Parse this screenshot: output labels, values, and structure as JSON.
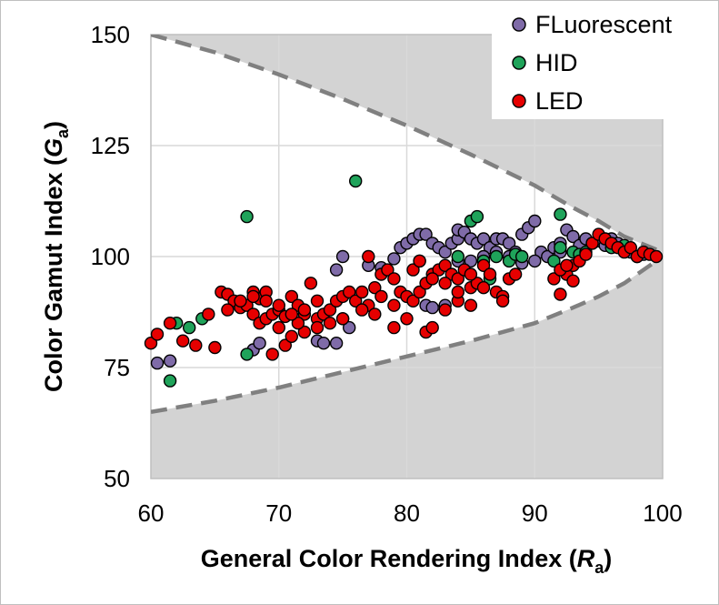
{
  "chart_data": {
    "type": "scatter",
    "xlabel": {
      "prefix": "General Color Rendering Index (",
      "var": "R",
      "sub": "a",
      "suffix": ")"
    },
    "ylabel": {
      "prefix": "Color Gamut Index (",
      "var": "G",
      "sub": "a",
      "suffix": ")"
    },
    "xlim": [
      60,
      100
    ],
    "ylim": [
      50,
      150
    ],
    "xticks": [
      60,
      70,
      80,
      90,
      100
    ],
    "yticks": [
      50,
      75,
      100,
      125,
      150
    ],
    "grid": true,
    "legend_position": "top-right",
    "boundary": {
      "upper": [
        [
          60,
          150
        ],
        [
          65,
          146
        ],
        [
          70,
          141
        ],
        [
          75,
          135.5
        ],
        [
          80,
          129.5
        ],
        [
          85,
          123
        ],
        [
          90,
          116
        ],
        [
          93,
          111
        ],
        [
          95,
          108
        ],
        [
          97,
          104.5
        ],
        [
          100,
          101
        ]
      ],
      "lower": [
        [
          60,
          65
        ],
        [
          65,
          67.5
        ],
        [
          70,
          70.5
        ],
        [
          75,
          74
        ],
        [
          80,
          77.5
        ],
        [
          85,
          81
        ],
        [
          90,
          85
        ],
        [
          93,
          88.5
        ],
        [
          95,
          91
        ],
        [
          97,
          94
        ],
        [
          99,
          98
        ],
        [
          100,
          100
        ]
      ]
    },
    "series": [
      {
        "name": "FLuorescent",
        "color": "#7f6ba8",
        "points": [
          [
            60.5,
            76
          ],
          [
            61.5,
            76.5
          ],
          [
            68,
            79
          ],
          [
            68.5,
            80.5
          ],
          [
            73,
            81
          ],
          [
            73.5,
            80.5
          ],
          [
            74.5,
            80.5
          ],
          [
            75,
            86
          ],
          [
            75.5,
            84
          ],
          [
            74.5,
            97
          ],
          [
            75,
            100
          ],
          [
            77,
            98
          ],
          [
            78,
            97.5
          ],
          [
            79,
            99.5
          ],
          [
            79.5,
            102
          ],
          [
            80,
            103
          ],
          [
            80.5,
            104
          ],
          [
            81,
            105
          ],
          [
            81.5,
            105
          ],
          [
            81,
            99
          ],
          [
            82,
            103
          ],
          [
            82.5,
            102
          ],
          [
            83,
            101
          ],
          [
            83.5,
            103
          ],
          [
            84,
            104
          ],
          [
            84,
            106
          ],
          [
            84.5,
            105.5
          ],
          [
            85,
            104
          ],
          [
            85.5,
            103
          ],
          [
            86,
            104
          ],
          [
            86.5,
            102
          ],
          [
            87,
            104
          ],
          [
            87.5,
            104
          ],
          [
            88,
            103
          ],
          [
            88.5,
            101
          ],
          [
            89,
            105
          ],
          [
            89.5,
            106.5
          ],
          [
            90,
            108
          ],
          [
            90.5,
            101
          ],
          [
            91,
            100
          ],
          [
            91.5,
            102
          ],
          [
            92,
            103
          ],
          [
            92.5,
            106
          ],
          [
            93,
            104.5
          ],
          [
            93.5,
            102.5
          ],
          [
            94,
            104
          ],
          [
            94.5,
            103
          ],
          [
            95,
            103.5
          ],
          [
            95.5,
            102.5
          ],
          [
            96,
            104
          ],
          [
            96.5,
            103
          ],
          [
            97,
            102
          ],
          [
            97.5,
            101
          ],
          [
            98,
            100
          ],
          [
            98.5,
            100.5
          ],
          [
            81.5,
            89
          ],
          [
            82,
            88.5
          ],
          [
            83,
            89
          ],
          [
            84,
            99
          ],
          [
            85,
            99
          ],
          [
            86,
            100
          ],
          [
            87,
            101
          ],
          [
            88,
            100
          ],
          [
            89,
            98.5
          ],
          [
            90,
            99
          ],
          [
            92,
            101
          ]
        ]
      },
      {
        "name": "HID",
        "color": "#1fa35a",
        "points": [
          [
            61.5,
            72
          ],
          [
            62,
            85
          ],
          [
            63,
            84
          ],
          [
            64,
            86
          ],
          [
            67.5,
            78
          ],
          [
            67.5,
            109
          ],
          [
            76,
            117
          ],
          [
            84,
            100
          ],
          [
            85,
            108
          ],
          [
            85.5,
            109
          ],
          [
            86,
            99
          ],
          [
            86.5,
            95
          ],
          [
            87,
            100
          ],
          [
            88,
            99
          ],
          [
            88.5,
            100.5
          ],
          [
            89,
            100
          ],
          [
            91.5,
            99
          ],
          [
            92,
            102
          ],
          [
            92,
            109.5
          ],
          [
            93,
            101
          ],
          [
            93.5,
            100.5
          ],
          [
            94,
            101
          ],
          [
            96,
            102
          ],
          [
            97,
            102.5
          ]
        ]
      },
      {
        "name": "LED",
        "color": "#e60000",
        "points": [
          [
            60,
            80.5
          ],
          [
            60.5,
            82.5
          ],
          [
            61.5,
            85
          ],
          [
            62.5,
            81
          ],
          [
            63.5,
            80
          ],
          [
            64.5,
            87
          ],
          [
            65,
            79.5
          ],
          [
            65.5,
            92
          ],
          [
            66,
            91.5
          ],
          [
            66.5,
            90
          ],
          [
            67,
            88.5
          ],
          [
            67.5,
            89
          ],
          [
            68,
            92
          ],
          [
            68.5,
            90.5
          ],
          [
            68,
            87
          ],
          [
            68.5,
            85
          ],
          [
            69,
            86
          ],
          [
            69.5,
            87
          ],
          [
            70,
            88
          ],
          [
            70.5,
            86.5
          ],
          [
            70,
            84
          ],
          [
            70.5,
            80
          ],
          [
            71,
            82
          ],
          [
            71,
            91
          ],
          [
            71.5,
            89
          ],
          [
            72,
            87
          ],
          [
            72.5,
            94
          ],
          [
            73,
            90
          ],
          [
            73,
            86
          ],
          [
            73.5,
            87
          ],
          [
            74,
            88
          ],
          [
            74.5,
            90
          ],
          [
            75,
            91
          ],
          [
            75.5,
            92
          ],
          [
            76,
            90
          ],
          [
            76.5,
            92
          ],
          [
            77,
            89
          ],
          [
            77.5,
            93
          ],
          [
            78,
            96
          ],
          [
            77,
            100
          ],
          [
            78.5,
            97
          ],
          [
            79,
            95
          ],
          [
            79.5,
            92
          ],
          [
            80,
            91
          ],
          [
            80.5,
            90
          ],
          [
            81,
            92
          ],
          [
            81.5,
            94
          ],
          [
            82,
            96
          ],
          [
            82.5,
            97
          ],
          [
            83,
            98
          ],
          [
            83.5,
            96
          ],
          [
            84,
            95
          ],
          [
            84.5,
            97
          ],
          [
            85,
            93
          ],
          [
            85.5,
            94
          ],
          [
            86,
            98
          ],
          [
            86.5,
            96
          ],
          [
            87,
            92
          ],
          [
            87.5,
            91
          ],
          [
            88,
            95
          ],
          [
            88.5,
            96
          ],
          [
            80,
            86
          ],
          [
            79,
            84
          ],
          [
            81.5,
            83
          ],
          [
            82,
            84
          ],
          [
            83,
            88
          ],
          [
            84,
            90
          ],
          [
            85,
            89
          ],
          [
            86,
            93
          ],
          [
            87.5,
            90
          ],
          [
            69,
            92
          ],
          [
            72,
            83
          ],
          [
            69.5,
            78
          ],
          [
            71.5,
            85
          ],
          [
            92,
            91.5
          ],
          [
            92.5,
            96
          ],
          [
            93,
            98
          ],
          [
            93.5,
            99
          ],
          [
            94,
            100.5
          ],
          [
            94.5,
            103
          ],
          [
            95,
            105
          ],
          [
            95.5,
            104
          ],
          [
            96,
            103
          ],
          [
            96.5,
            102
          ],
          [
            97,
            101
          ],
          [
            97.5,
            102
          ],
          [
            98,
            100
          ],
          [
            98.5,
            101
          ],
          [
            99,
            100.5
          ],
          [
            99.5,
            100
          ],
          [
            91.5,
            95
          ],
          [
            92,
            97
          ],
          [
            92.5,
            98
          ],
          [
            93,
            94.5
          ],
          [
            80.5,
            97
          ],
          [
            81,
            99
          ],
          [
            82,
            95
          ],
          [
            83,
            94
          ],
          [
            84,
            92
          ],
          [
            85,
            96
          ],
          [
            79,
            89
          ],
          [
            78,
            91
          ],
          [
            77.5,
            87
          ],
          [
            76.5,
            88
          ],
          [
            75,
            86
          ],
          [
            74,
            85
          ],
          [
            73,
            84
          ],
          [
            72,
            88
          ],
          [
            71,
            87
          ],
          [
            70,
            89
          ],
          [
            69,
            90
          ],
          [
            68,
            91
          ],
          [
            67,
            90
          ],
          [
            66,
            88
          ]
        ]
      }
    ]
  }
}
